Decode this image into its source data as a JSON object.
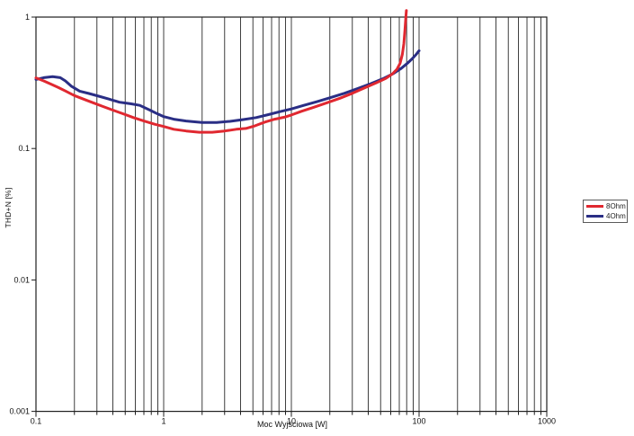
{
  "figure": {
    "background": "#ffffff",
    "grid_color": "#3f3f3f",
    "axis_color": "#1f1f1f",
    "text_color": "#111111"
  },
  "chart_data": {
    "type": "line",
    "title": "",
    "xlabel": "Moc Wyjściowa [W]",
    "ylabel": "THD+N [%]",
    "xscale": "log",
    "yscale": "log",
    "xlim": [
      0.1,
      1000
    ],
    "ylim": [
      0.001,
      1
    ],
    "x_ticks": [
      0.1,
      1,
      10,
      100,
      1000
    ],
    "x_tick_labels": [
      "0.1",
      "1",
      "10",
      "100",
      "1000"
    ],
    "y_ticks": [
      1,
      0.1,
      0.01,
      0.001
    ],
    "y_tick_labels": [
      "1",
      "0.1",
      "0.01",
      "0.001"
    ],
    "grid": {
      "major": true,
      "minor": true
    },
    "legend": {
      "position": "right-outside",
      "entries": [
        {
          "label": "8Ohm",
          "color": "#e02830"
        },
        {
          "label": "4Ohm",
          "color": "#2a2e85"
        }
      ]
    },
    "series": [
      {
        "name": "4Ohm",
        "color": "#2a2e85",
        "points": [
          [
            0.1,
            0.335
          ],
          [
            0.115,
            0.346
          ],
          [
            0.135,
            0.352
          ],
          [
            0.155,
            0.346
          ],
          [
            0.17,
            0.327
          ],
          [
            0.19,
            0.297
          ],
          [
            0.22,
            0.273
          ],
          [
            0.26,
            0.262
          ],
          [
            0.31,
            0.25
          ],
          [
            0.37,
            0.238
          ],
          [
            0.45,
            0.225
          ],
          [
            0.55,
            0.219
          ],
          [
            0.65,
            0.213
          ],
          [
            0.78,
            0.196
          ],
          [
            0.9,
            0.183
          ],
          [
            1.0,
            0.175
          ],
          [
            1.2,
            0.167
          ],
          [
            1.5,
            0.162
          ],
          [
            2.0,
            0.158
          ],
          [
            2.6,
            0.158
          ],
          [
            3.3,
            0.161
          ],
          [
            4.2,
            0.166
          ],
          [
            5.3,
            0.172
          ],
          [
            6.6,
            0.181
          ],
          [
            8.2,
            0.191
          ],
          [
            10,
            0.2
          ],
          [
            12.5,
            0.213
          ],
          [
            16,
            0.228
          ],
          [
            20,
            0.243
          ],
          [
            26,
            0.263
          ],
          [
            33,
            0.286
          ],
          [
            42,
            0.312
          ],
          [
            53,
            0.342
          ],
          [
            63,
            0.372
          ],
          [
            72,
            0.405
          ],
          [
            80,
            0.44
          ],
          [
            88,
            0.48
          ],
          [
            95,
            0.52
          ],
          [
            100,
            0.555
          ]
        ]
      },
      {
        "name": "8Ohm",
        "color": "#e02830",
        "points": [
          [
            0.1,
            0.345
          ],
          [
            0.115,
            0.327
          ],
          [
            0.13,
            0.31
          ],
          [
            0.15,
            0.291
          ],
          [
            0.17,
            0.274
          ],
          [
            0.2,
            0.253
          ],
          [
            0.24,
            0.236
          ],
          [
            0.28,
            0.223
          ],
          [
            0.33,
            0.21
          ],
          [
            0.4,
            0.196
          ],
          [
            0.48,
            0.184
          ],
          [
            0.58,
            0.172
          ],
          [
            0.7,
            0.162
          ],
          [
            0.85,
            0.153
          ],
          [
            1.0,
            0.147
          ],
          [
            1.2,
            0.14
          ],
          [
            1.5,
            0.136
          ],
          [
            1.9,
            0.133
          ],
          [
            2.4,
            0.133
          ],
          [
            3.0,
            0.136
          ],
          [
            3.7,
            0.14
          ],
          [
            4.4,
            0.142
          ],
          [
            5.2,
            0.149
          ],
          [
            6.2,
            0.159
          ],
          [
            7.4,
            0.167
          ],
          [
            8.8,
            0.173
          ],
          [
            10,
            0.18
          ],
          [
            12,
            0.192
          ],
          [
            15,
            0.206
          ],
          [
            19,
            0.223
          ],
          [
            24,
            0.241
          ],
          [
            30,
            0.263
          ],
          [
            38,
            0.291
          ],
          [
            46,
            0.315
          ],
          [
            55,
            0.342
          ],
          [
            62,
            0.37
          ],
          [
            67,
            0.4
          ],
          [
            71,
            0.445
          ],
          [
            74,
            0.52
          ],
          [
            76,
            0.63
          ],
          [
            77.5,
            0.8
          ],
          [
            78.8,
            1.0
          ],
          [
            79.5,
            1.12
          ]
        ]
      }
    ]
  }
}
